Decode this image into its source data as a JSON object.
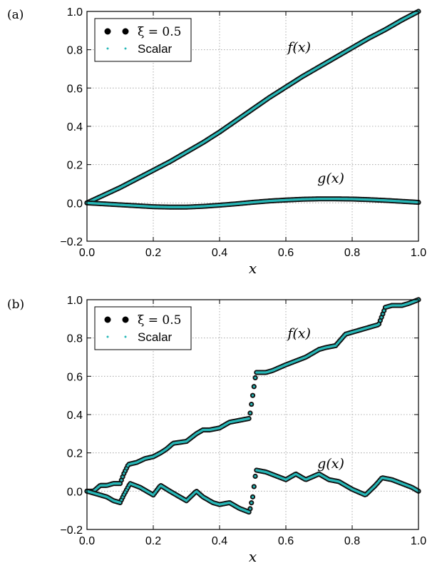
{
  "chart_data": [
    {
      "type": "scatter",
      "panel_label": "(a)",
      "xlabel": "x",
      "xlim": [
        0.0,
        1.0
      ],
      "ylim": [
        -0.2,
        1.0
      ],
      "xticks": [
        "0.0",
        "0.2",
        "0.4",
        "0.6",
        "0.8",
        "1.0"
      ],
      "yticks": [
        "−0.2",
        "0.0",
        "0.2",
        "0.4",
        "0.6",
        "0.8",
        "1.0"
      ],
      "grid": true,
      "legend_position": "top-left",
      "legend": [
        "ξ = 0.5",
        "Scalar"
      ],
      "annotations": [
        "f(x)",
        "g(x)"
      ],
      "series": [
        {
          "curve": "f(x)",
          "x": [
            0.0,
            0.05,
            0.1,
            0.15,
            0.2,
            0.25,
            0.3,
            0.35,
            0.4,
            0.45,
            0.5,
            0.55,
            0.6,
            0.65,
            0.7,
            0.75,
            0.8,
            0.85,
            0.9,
            0.95,
            1.0
          ],
          "y": [
            0.0,
            0.04,
            0.08,
            0.125,
            0.17,
            0.215,
            0.265,
            0.315,
            0.37,
            0.43,
            0.49,
            0.55,
            0.605,
            0.66,
            0.71,
            0.76,
            0.81,
            0.86,
            0.905,
            0.955,
            1.0
          ]
        },
        {
          "curve": "g(x)",
          "x": [
            0.0,
            0.05,
            0.1,
            0.15,
            0.2,
            0.25,
            0.3,
            0.35,
            0.4,
            0.45,
            0.5,
            0.55,
            0.6,
            0.65,
            0.7,
            0.75,
            0.8,
            0.85,
            0.9,
            0.95,
            1.0
          ],
          "y": [
            0.0,
            -0.005,
            -0.01,
            -0.015,
            -0.02,
            -0.022,
            -0.022,
            -0.018,
            -0.012,
            -0.005,
            0.003,
            0.01,
            0.015,
            0.019,
            0.021,
            0.021,
            0.02,
            0.017,
            0.013,
            0.008,
            0.003
          ]
        }
      ]
    },
    {
      "type": "scatter",
      "panel_label": "(b)",
      "xlabel": "x",
      "xlim": [
        0.0,
        1.0
      ],
      "ylim": [
        -0.2,
        1.0
      ],
      "xticks": [
        "0.0",
        "0.2",
        "0.4",
        "0.6",
        "0.8",
        "1.0"
      ],
      "yticks": [
        "−0.2",
        "0.0",
        "0.2",
        "0.4",
        "0.6",
        "0.8",
        "1.0"
      ],
      "grid": true,
      "legend_position": "top-left",
      "legend": [
        "ξ = 0.5",
        "Scalar"
      ],
      "annotations": [
        "f(x)",
        "g(x)"
      ],
      "series": [
        {
          "curve": "f(x)",
          "x": [
            0.0,
            0.02,
            0.04,
            0.06,
            0.08,
            0.1,
            0.111,
            0.125,
            0.15,
            0.175,
            0.2,
            0.222,
            0.24,
            0.26,
            0.3,
            0.33,
            0.35,
            0.37,
            0.4,
            0.43,
            0.46,
            0.49,
            0.5,
            0.51,
            0.54,
            0.56,
            0.6,
            0.63,
            0.66,
            0.7,
            0.72,
            0.75,
            0.78,
            0.82,
            0.86,
            0.88,
            0.9,
            0.92,
            0.95,
            0.97,
            1.0
          ],
          "y": [
            0.0,
            0.0,
            0.03,
            0.03,
            0.04,
            0.04,
            0.09,
            0.14,
            0.15,
            0.17,
            0.18,
            0.2,
            0.22,
            0.25,
            0.26,
            0.3,
            0.32,
            0.32,
            0.33,
            0.36,
            0.37,
            0.38,
            0.5,
            0.62,
            0.62,
            0.63,
            0.66,
            0.68,
            0.7,
            0.74,
            0.75,
            0.76,
            0.82,
            0.84,
            0.86,
            0.87,
            0.96,
            0.97,
            0.97,
            0.98,
            1.0
          ]
        },
        {
          "curve": "g(x)",
          "x": [
            0.0,
            0.02,
            0.04,
            0.06,
            0.08,
            0.1,
            0.111,
            0.13,
            0.16,
            0.2,
            0.222,
            0.25,
            0.28,
            0.3,
            0.33,
            0.35,
            0.38,
            0.4,
            0.43,
            0.46,
            0.49,
            0.5,
            0.51,
            0.54,
            0.57,
            0.6,
            0.63,
            0.66,
            0.7,
            0.73,
            0.76,
            0.8,
            0.84,
            0.87,
            0.89,
            0.92,
            0.95,
            0.98,
            1.0
          ],
          "y": [
            0.0,
            -0.01,
            -0.02,
            -0.03,
            -0.05,
            -0.06,
            -0.02,
            0.04,
            0.02,
            -0.02,
            0.03,
            0.0,
            -0.03,
            -0.05,
            0.0,
            -0.03,
            -0.06,
            -0.07,
            -0.06,
            -0.09,
            -0.11,
            -0.03,
            0.11,
            0.1,
            0.08,
            0.06,
            0.09,
            0.06,
            0.09,
            0.06,
            0.05,
            0.01,
            -0.02,
            0.03,
            0.07,
            0.06,
            0.04,
            0.02,
            0.0
          ]
        }
      ]
    }
  ]
}
